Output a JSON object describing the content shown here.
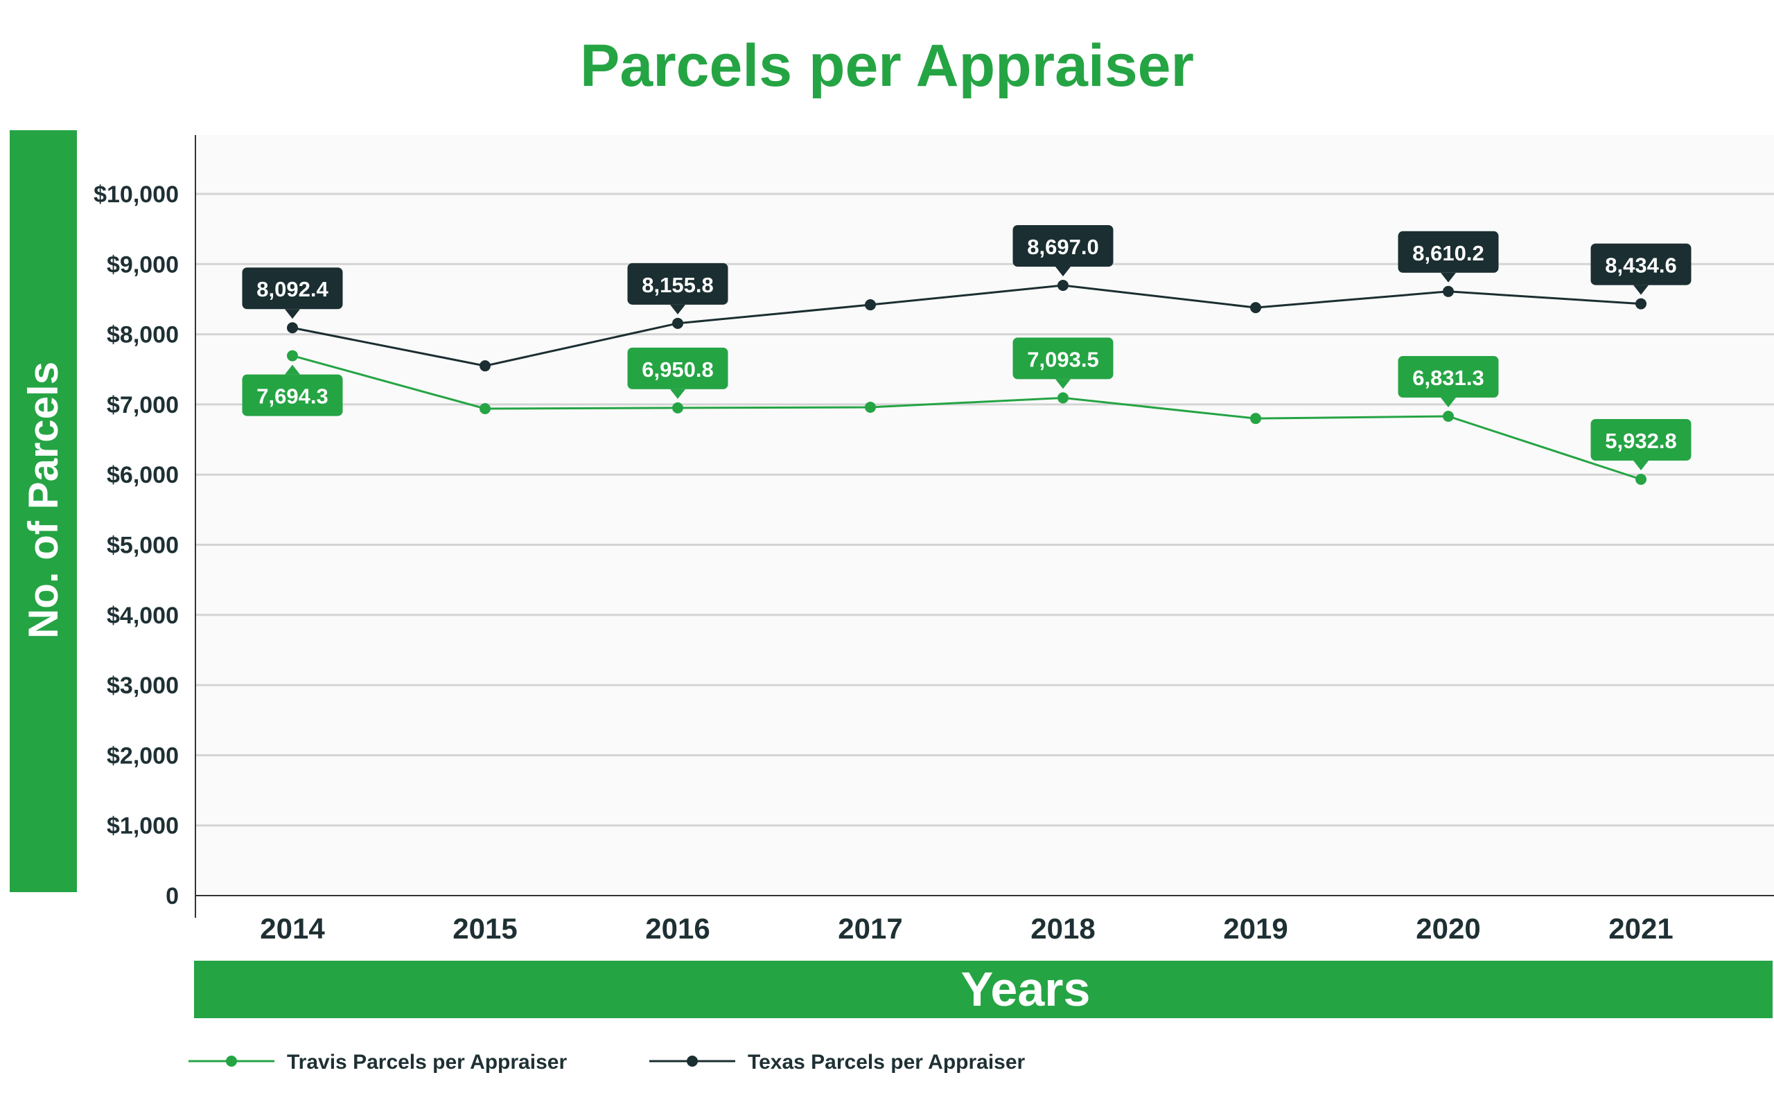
{
  "chart_data": {
    "type": "line",
    "title": "Parcels per Appraiser",
    "xlabel": "Years",
    "ylabel": "No. of Parcels",
    "categories": [
      "2014",
      "2015",
      "2016",
      "2017",
      "2018",
      "2019",
      "2020",
      "2021"
    ],
    "y_ticks": [
      "0",
      "$1,000",
      "$2,000",
      "$3,000",
      "$4,000",
      "$5,000",
      "$6,000",
      "$7,000",
      "$8,000",
      "$9,000",
      "$10,000"
    ],
    "ylim": [
      0,
      10900
    ],
    "grid": true,
    "legend_position": "bottom-left",
    "series": [
      {
        "name": "Travis Parcels per Appraiser",
        "color": "#25a444",
        "values": [
          7694.3,
          6940,
          6950.8,
          6960,
          7093.5,
          6800,
          6831.3,
          5932.8
        ],
        "labels": [
          "7,694.3",
          null,
          "6,950.8",
          null,
          "7,093.5",
          null,
          "6,831.3",
          "5,932.8"
        ],
        "label_placement": [
          "below",
          null,
          "above",
          null,
          "above",
          null,
          "above",
          "above"
        ]
      },
      {
        "name": "Texas Parcels per Appraiser",
        "color": "#1b2e31",
        "values": [
          8092.4,
          7550,
          8155.8,
          8420,
          8697.0,
          8380,
          8610.2,
          8434.6
        ],
        "labels": [
          "8,092.4",
          null,
          "8,155.8",
          null,
          "8,697.0",
          null,
          "8,610.2",
          "8,434.6"
        ],
        "label_placement": [
          "above",
          null,
          "above",
          null,
          "above",
          null,
          "above",
          "above"
        ]
      }
    ]
  }
}
